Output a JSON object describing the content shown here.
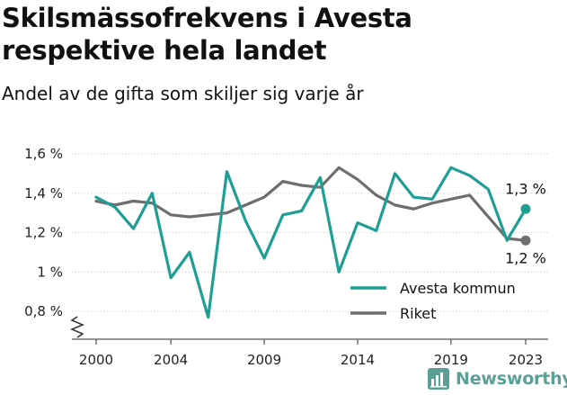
{
  "title": "Skilsmässofrekvens i Avesta respektive hela landet",
  "subtitle": "Andel av de gifta som skiljer sig varje år",
  "brand": "Newsworthy",
  "colors": {
    "avesta": "#1f9e94",
    "riket": "#6e6e70",
    "grid": "#d6d6d6",
    "axis": "#555555"
  },
  "chart_data": {
    "type": "line",
    "ylim": [
      0.8,
      1.6
    ],
    "y_ticks": [
      0.8,
      1.0,
      1.2,
      1.4,
      1.6
    ],
    "y_tick_labels": [
      "0,8 %",
      "1 %",
      "1,2 %",
      "1,4 %",
      "1,6 %"
    ],
    "x_ticks": [
      2000,
      2004,
      2009,
      2014,
      2019,
      2023
    ],
    "x_tick_labels": [
      "2000",
      "2004",
      "2009",
      "2014",
      "2019",
      "2023"
    ],
    "x": [
      2000,
      2001,
      2002,
      2003,
      2004,
      2005,
      2006,
      2007,
      2008,
      2009,
      2010,
      2011,
      2012,
      2013,
      2014,
      2015,
      2016,
      2017,
      2018,
      2019,
      2020,
      2021,
      2022,
      2023
    ],
    "series": [
      {
        "name": "Avesta kommun",
        "values": [
          1.38,
          1.33,
          1.22,
          1.4,
          0.97,
          1.1,
          0.77,
          1.51,
          1.26,
          1.07,
          1.29,
          1.31,
          1.48,
          1.0,
          1.25,
          1.21,
          1.5,
          1.38,
          1.37,
          1.53,
          1.49,
          1.42,
          1.16,
          1.32
        ],
        "end_label": "1,3 %"
      },
      {
        "name": "Riket",
        "values": [
          1.36,
          1.34,
          1.36,
          1.35,
          1.29,
          1.28,
          1.29,
          1.3,
          1.34,
          1.38,
          1.46,
          1.44,
          1.43,
          1.53,
          1.47,
          1.39,
          1.34,
          1.32,
          1.35,
          1.37,
          1.39,
          1.28,
          1.17,
          1.16
        ],
        "end_label": "1,2 %"
      }
    ],
    "legend_position": "bottom-right",
    "grid": true
  }
}
